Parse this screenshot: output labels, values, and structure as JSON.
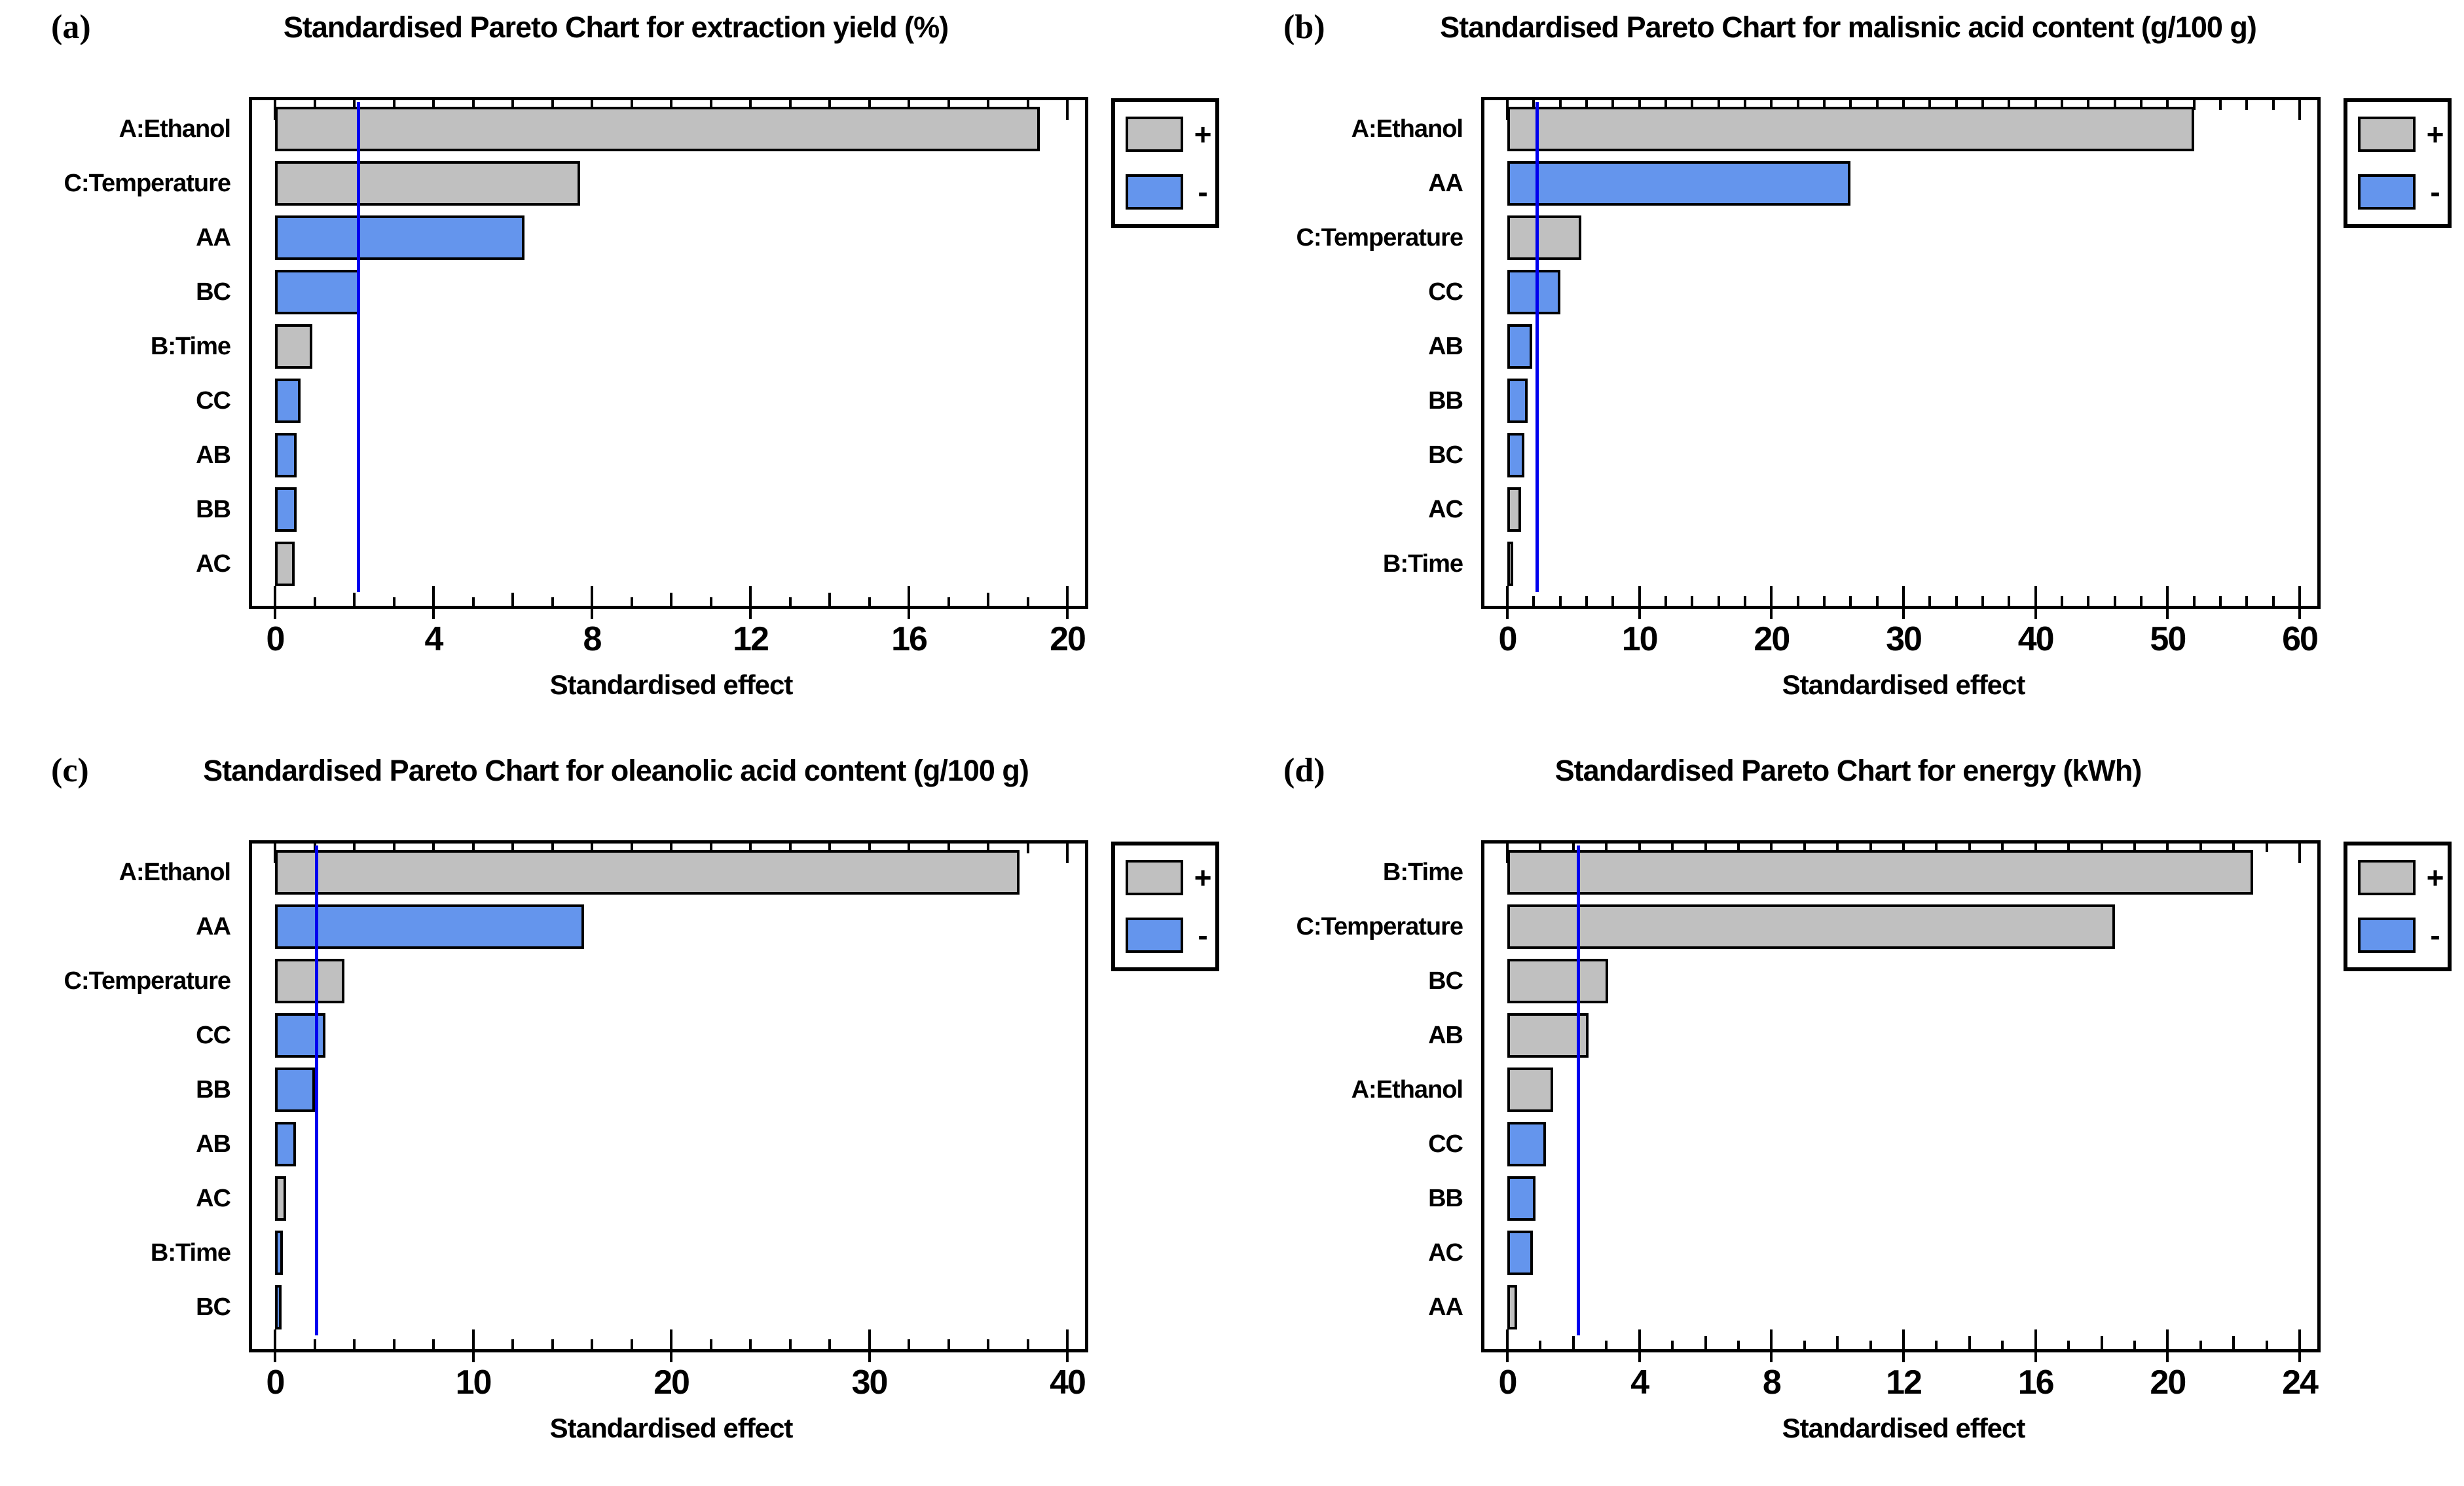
{
  "figure": {
    "background": "#ffffff",
    "legend": {
      "positive_label": "+",
      "negative_label": "-"
    },
    "colors": {
      "positive_fill": "#c0c0c0",
      "negative_fill": "#6495ed",
      "bar_border": "#000000",
      "reference_line": "#0000ee",
      "frame_border": "#000000",
      "text": "#000000"
    }
  },
  "chart_data": [
    {
      "type": "bar",
      "orientation": "horizontal",
      "panel_letter": "(a)",
      "title": "Standardised Pareto Chart for extraction yield (%)",
      "xlabel": "Standardised effect",
      "xlim": [
        0,
        20
      ],
      "major_tick_step": 4,
      "minor_tick_step": 1,
      "tick_labels": [
        "0",
        "4",
        "8",
        "12",
        "16",
        "20"
      ],
      "reference_line": 2.1,
      "categories": [
        "A:Ethanol",
        "C:Temperature",
        "AA",
        "BC",
        "B:Time",
        "CC",
        "AB",
        "BB",
        "AC"
      ],
      "values": [
        19.3,
        7.7,
        6.3,
        2.15,
        0.95,
        0.65,
        0.55,
        0.55,
        0.5
      ],
      "signs": [
        "+",
        "+",
        "-",
        "-",
        "+",
        "-",
        "-",
        "-",
        "+"
      ],
      "legend_position": "right",
      "grid": false
    },
    {
      "type": "bar",
      "orientation": "horizontal",
      "panel_letter": "(b)",
      "title": "Standardised Pareto Chart for malisnic acid content (g/100 g)",
      "xlabel": "Standardised effect",
      "xlim": [
        0,
        60
      ],
      "major_tick_step": 10,
      "minor_tick_step": 2,
      "tick_labels": [
        "0",
        "10",
        "20",
        "30",
        "40",
        "50",
        "60"
      ],
      "reference_line": 2.25,
      "categories": [
        "A:Ethanol",
        "AA",
        "C:Temperature",
        "CC",
        "AB",
        "BB",
        "BC",
        "AC",
        "B:Time"
      ],
      "values": [
        52,
        26,
        5.6,
        4.0,
        1.9,
        1.55,
        1.3,
        1.05,
        0.15
      ],
      "signs": [
        "+",
        "-",
        "+",
        "-",
        "-",
        "-",
        "-",
        "+",
        "+"
      ],
      "legend_position": "right",
      "grid": false
    },
    {
      "type": "bar",
      "orientation": "horizontal",
      "panel_letter": "(c)",
      "title": "Standardised Pareto Chart for oleanolic acid content (g/100 g)",
      "xlabel": "Standardised effect",
      "xlim": [
        0,
        40
      ],
      "major_tick_step": 10,
      "minor_tick_step": 2,
      "tick_labels": [
        "0",
        "10",
        "20",
        "30",
        "40"
      ],
      "reference_line": 2.1,
      "categories": [
        "A:Ethanol",
        "AA",
        "C:Temperature",
        "CC",
        "BB",
        "AB",
        "AC",
        "B:Time",
        "BC"
      ],
      "values": [
        37.6,
        15.6,
        3.5,
        2.55,
        2.0,
        1.05,
        0.55,
        0.4,
        0.32
      ],
      "signs": [
        "+",
        "-",
        "+",
        "-",
        "-",
        "-",
        "+",
        "-",
        "-"
      ],
      "legend_position": "right",
      "grid": false
    },
    {
      "type": "bar",
      "orientation": "horizontal",
      "panel_letter": "(d)",
      "title": "Standardised Pareto Chart for energy (kWh)",
      "xlabel": "Standardised effect",
      "xlim": [
        0,
        24
      ],
      "major_tick_step": 4,
      "minor_tick_step": 1,
      "tick_labels": [
        "0",
        "4",
        "8",
        "12",
        "16",
        "20",
        "24"
      ],
      "reference_line": 2.15,
      "categories": [
        "B:Time",
        "C:Temperature",
        "BC",
        "AB",
        "A:Ethanol",
        "CC",
        "BB",
        "AC",
        "AA"
      ],
      "values": [
        22.6,
        18.4,
        3.05,
        2.45,
        1.38,
        1.18,
        0.85,
        0.77,
        0.3
      ],
      "signs": [
        "+",
        "+",
        "+",
        "+",
        "+",
        "-",
        "-",
        "-",
        "+"
      ],
      "legend_position": "right",
      "grid": false
    }
  ]
}
